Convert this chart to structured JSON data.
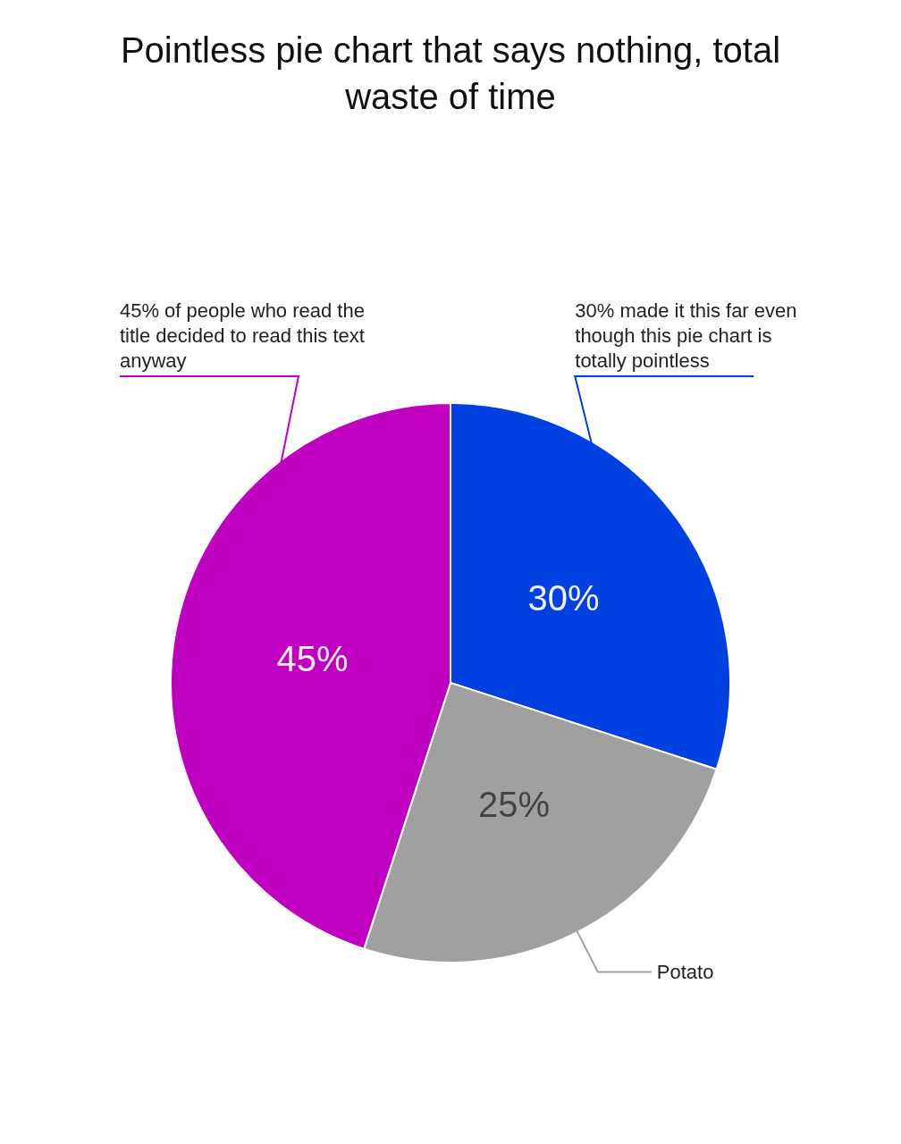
{
  "chart_data": {
    "type": "pie",
    "title": "Pointless pie chart that says nothing, total waste of time",
    "categories": [
      "30% made it this far even though this pie chart is totally pointless",
      "Potato",
      "45% of people who read the title decided to read this text anyway"
    ],
    "values": [
      30,
      25,
      45
    ],
    "value_labels": [
      "30%",
      "25%",
      "45%"
    ],
    "colors": [
      "#0040e0",
      "#a0a0a0",
      "#c000c0"
    ],
    "legend": false
  }
}
